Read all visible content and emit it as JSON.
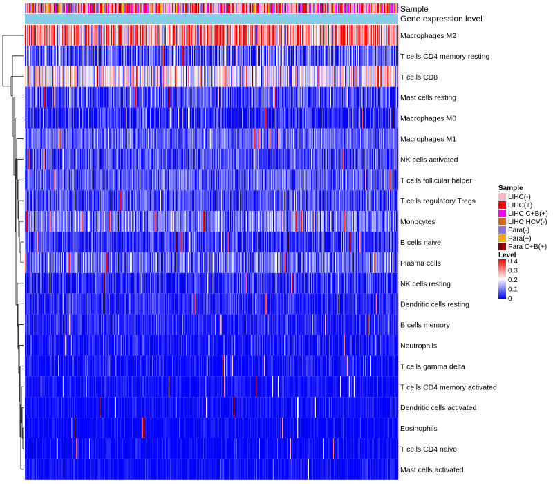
{
  "chart_data": {
    "type": "heatmap",
    "title": "",
    "n_columns": 540,
    "rows": [
      {
        "name": "Macrophages M2",
        "mean": 0.28,
        "sd": 0.09
      },
      {
        "name": "T cells CD4 memory resting",
        "mean": 0.07,
        "sd": 0.06
      },
      {
        "name": "T cells CD8",
        "mean": 0.19,
        "sd": 0.08
      },
      {
        "name": "Mast cells resting",
        "mean": 0.06,
        "sd": 0.05
      },
      {
        "name": "Macrophages M0",
        "mean": 0.03,
        "sd": 0.05
      },
      {
        "name": "Macrophages M1",
        "mean": 0.08,
        "sd": 0.04
      },
      {
        "name": "NK cells activated",
        "mean": 0.06,
        "sd": 0.04
      },
      {
        "name": "T cells follicular helper",
        "mean": 0.07,
        "sd": 0.04
      },
      {
        "name": "T cells regulatory  Tregs",
        "mean": 0.06,
        "sd": 0.04
      },
      {
        "name": "Monocytes",
        "mean": 0.09,
        "sd": 0.05
      },
      {
        "name": "B cells naive",
        "mean": 0.04,
        "sd": 0.04
      },
      {
        "name": "Plasma cells",
        "mean": 0.08,
        "sd": 0.05
      },
      {
        "name": "NK cells resting",
        "mean": 0.03,
        "sd": 0.04
      },
      {
        "name": "Dendritic cells resting",
        "mean": 0.03,
        "sd": 0.03
      },
      {
        "name": "B cells memory",
        "mean": 0.03,
        "sd": 0.03
      },
      {
        "name": "Neutrophils",
        "mean": 0.02,
        "sd": 0.03
      },
      {
        "name": "T cells gamma delta",
        "mean": 0.01,
        "sd": 0.03
      },
      {
        "name": "T cells CD4 memory activated",
        "mean": 0.01,
        "sd": 0.02
      },
      {
        "name": "Dendritic cells activated",
        "mean": 0.01,
        "sd": 0.02
      },
      {
        "name": "Eosinophils",
        "mean": 0.005,
        "sd": 0.02
      },
      {
        "name": "T cells CD4 naive",
        "mean": 0.005,
        "sd": 0.02
      },
      {
        "name": "Mast cells activated",
        "mean": 0.01,
        "sd": 0.02
      }
    ],
    "annotations": [
      {
        "label": "Sample",
        "type": "categorical"
      },
      {
        "label": "Gene expression level",
        "type": "constant",
        "color": "#87ceeb"
      }
    ],
    "sample_categories": [
      {
        "name": "LIHC(-)",
        "color": "#ffb6c1"
      },
      {
        "name": "LIHC(+)",
        "color": "#ff0000"
      },
      {
        "name": "LIHC C+B(+)",
        "color": "#ff00ff"
      },
      {
        "name": "LIHC HCV(-)",
        "color": "#d2691e"
      },
      {
        "name": "Para(-)",
        "color": "#9370db"
      },
      {
        "name": "Para(+)",
        "color": "#ffa500"
      },
      {
        "name": "Para C+B(+)",
        "color": "#8b0000"
      }
    ],
    "level_legend": {
      "title": "Level",
      "range": [
        0,
        0.4
      ],
      "ticks": [
        "0.4",
        "0.3",
        "0.2",
        "0.1",
        "0"
      ],
      "colors": [
        "#0000ff",
        "#ffffff",
        "#ff0000"
      ]
    },
    "legend_position": "right",
    "dendrogram": "rows, left side"
  }
}
